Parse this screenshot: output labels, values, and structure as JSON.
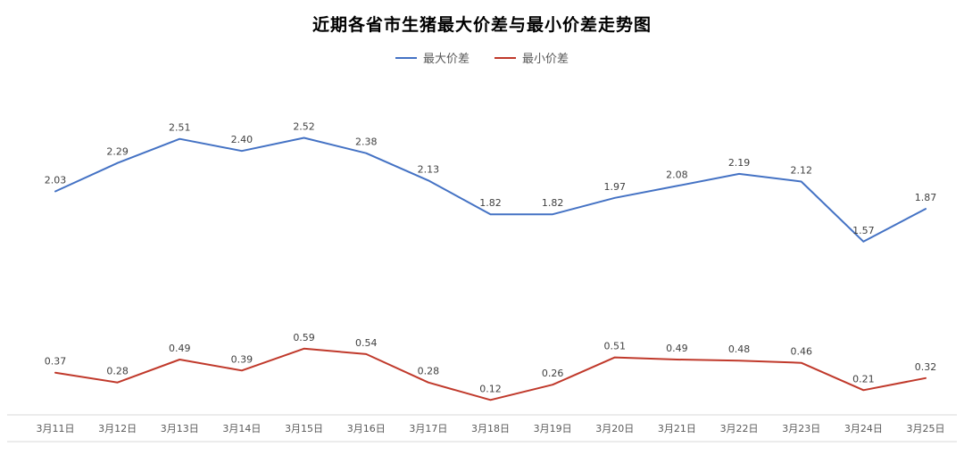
{
  "chart_data": {
    "type": "line",
    "title": "近期各省市生猪最大价差与最小价差走势图",
    "categories": [
      "3月11日",
      "3月12日",
      "3月13日",
      "3月14日",
      "3月15日",
      "3月16日",
      "3月17日",
      "3月18日",
      "3月19日",
      "3月20日",
      "3月21日",
      "3月22日",
      "3月23日",
      "3月24日",
      "3月25日"
    ],
    "series": [
      {
        "name": "最大价差",
        "color": "#4472c4",
        "values": [
          2.03,
          2.29,
          2.51,
          2.4,
          2.52,
          2.38,
          2.13,
          1.82,
          1.82,
          1.97,
          2.08,
          2.19,
          2.12,
          1.57,
          1.87
        ]
      },
      {
        "name": "最小价差",
        "color": "#c0392b",
        "values": [
          0.37,
          0.28,
          0.49,
          0.39,
          0.59,
          0.54,
          0.28,
          0.12,
          0.26,
          0.51,
          0.49,
          0.48,
          0.46,
          0.21,
          0.32
        ]
      }
    ],
    "xlabel": "",
    "ylabel": "",
    "ylim": [
      0,
      2.9
    ],
    "grid": false,
    "legend_position": "top",
    "data_label_color": "#404040",
    "axis_label_color": "#595959",
    "axis_line_color": "#d9d9d9",
    "background_color": "#ffffff"
  }
}
